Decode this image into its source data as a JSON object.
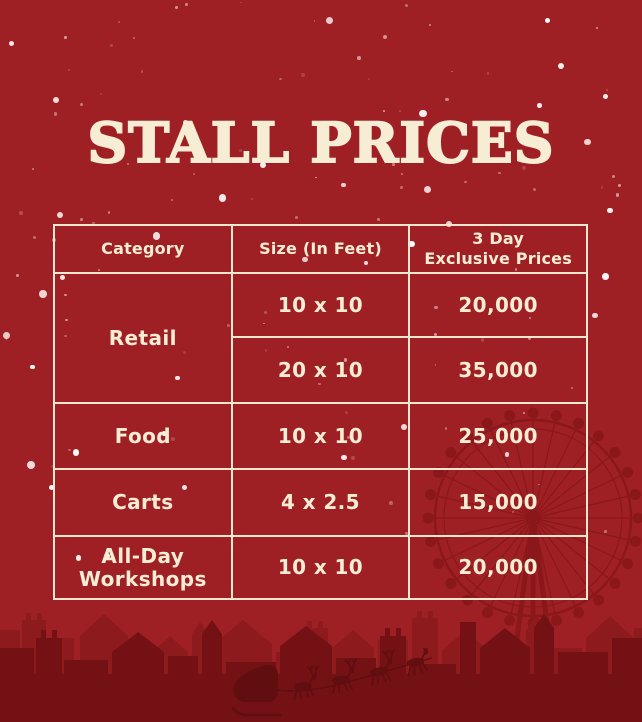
{
  "title": "STALL PRICES",
  "colors": {
    "background": "#9f2024",
    "cream": "#f7ecd4",
    "table-border": "#f3e8cf",
    "snow": "#ffffff",
    "wheel": "#871619",
    "silhouette-mid": "#8d1b1e",
    "silhouette-front": "#731114",
    "sleigh": "#600e11"
  },
  "table": {
    "headers": [
      "Category",
      "Size (In Feet)",
      "3 Day\nExclusive Prices"
    ],
    "rows": [
      {
        "category": "Retail",
        "size": "10 x 10",
        "price": "20,000"
      },
      {
        "size": "20 x 10",
        "price": "35,000"
      },
      {
        "category": "Food",
        "size": "10 x 10",
        "price": "25,000"
      },
      {
        "category": "Carts",
        "size": "4 x 2.5",
        "price": "15,000"
      },
      {
        "category": "All-Day Workshops",
        "size": "10 x 10",
        "price": "20,000"
      }
    ]
  }
}
